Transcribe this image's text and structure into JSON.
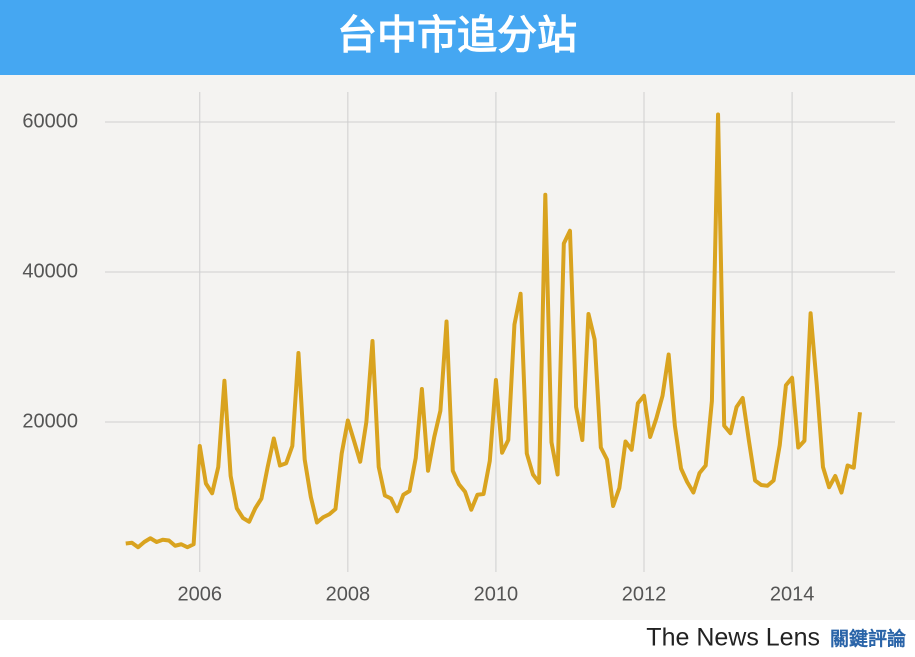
{
  "chart_data": {
    "type": "line",
    "title": "台中市追分站",
    "x": [
      2005,
      2005.083,
      2005.167,
      2005.25,
      2005.333,
      2005.417,
      2005.5,
      2005.583,
      2005.667,
      2005.75,
      2005.833,
      2005.917,
      2006,
      2006.083,
      2006.167,
      2006.25,
      2006.333,
      2006.417,
      2006.5,
      2006.583,
      2006.667,
      2006.75,
      2006.833,
      2006.917,
      2007,
      2007.083,
      2007.167,
      2007.25,
      2007.333,
      2007.417,
      2007.5,
      2007.583,
      2007.667,
      2007.75,
      2007.833,
      2007.917,
      2008,
      2008.083,
      2008.167,
      2008.25,
      2008.333,
      2008.417,
      2008.5,
      2008.583,
      2008.667,
      2008.75,
      2008.833,
      2008.917,
      2009,
      2009.083,
      2009.167,
      2009.25,
      2009.333,
      2009.417,
      2009.5,
      2009.583,
      2009.667,
      2009.75,
      2009.833,
      2009.917,
      2010,
      2010.083,
      2010.167,
      2010.25,
      2010.333,
      2010.417,
      2010.5,
      2010.583,
      2010.667,
      2010.75,
      2010.833,
      2010.917,
      2011,
      2011.083,
      2011.167,
      2011.25,
      2011.333,
      2011.417,
      2011.5,
      2011.583,
      2011.667,
      2011.75,
      2011.833,
      2011.917,
      2012,
      2012.083,
      2012.167,
      2012.25,
      2012.333,
      2012.417,
      2012.5,
      2012.583,
      2012.667,
      2012.75,
      2012.833,
      2012.917,
      2013,
      2013.083,
      2013.167,
      2013.25,
      2013.333,
      2013.417,
      2013.5,
      2013.583,
      2013.667,
      2013.75,
      2013.833,
      2013.917,
      2014,
      2014.083,
      2014.167,
      2014.25,
      2014.333,
      2014.417,
      2014.5,
      2014.583,
      2014.667,
      2014.75,
      2014.833,
      2014.917
    ],
    "series": [
      {
        "color": "#d9a31f",
        "values": [
          3800,
          3900,
          3300,
          4000,
          4500,
          4000,
          4300,
          4200,
          3500,
          3700,
          3300,
          3700,
          16800,
          11800,
          10500,
          14000,
          25500,
          12800,
          8500,
          7200,
          6700,
          8500,
          9800,
          14000,
          17800,
          14200,
          14500,
          16800,
          29200,
          15000,
          10000,
          6600,
          7300,
          7700,
          8400,
          15800,
          20200,
          17500,
          14700,
          20000,
          30800,
          14000,
          10200,
          9800,
          8100,
          10300,
          10800,
          15200,
          24400,
          13500,
          18000,
          21500,
          33400,
          13500,
          11700,
          10700,
          8300,
          10300,
          10400,
          14800,
          25600,
          15900,
          17600,
          33000,
          37100,
          15800,
          13000,
          11900,
          50300,
          17300,
          13000,
          43800,
          45500,
          22000,
          17600,
          34400,
          31000,
          16600,
          15000,
          8800,
          11200,
          17400,
          16300,
          22500,
          23500,
          18000,
          20500,
          23500,
          29000,
          19500,
          13800,
          12000,
          10600,
          13200,
          14200,
          22800,
          61000,
          19500,
          18500,
          22000,
          23200,
          17500,
          12200,
          11600,
          11500,
          12200,
          16900,
          24900,
          25900,
          16600,
          17500,
          34500,
          25000,
          14000,
          11300,
          12800,
          10600,
          14200,
          13900,
          21300
        ]
      }
    ],
    "xlim": [
      2004.72,
      2015.39
    ],
    "xticks": [
      2006,
      2008,
      2010,
      2012,
      2014
    ],
    "ylim": [
      0,
      64000
    ],
    "yticks": [
      20000,
      40000,
      60000
    ],
    "grid": true
  },
  "footer": {
    "brand": "The News Lens",
    "brand_zh": "關鍵評論"
  }
}
